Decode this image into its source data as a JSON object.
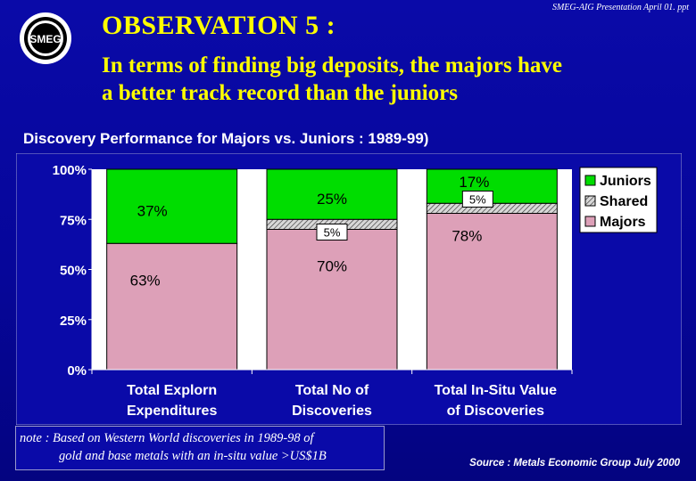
{
  "slide": {
    "logo_text": "SMEG",
    "ref": "SMEG-AIG Presentation April 01. ppt",
    "observation": "OBSERVATION 5 :",
    "headline_line1": "In terms of finding big deposits, the majors have",
    "headline_line2": "a better track record than the juniors",
    "subtitle": "Discovery Performance for Majors vs. Juniors : 1989-99)",
    "note_line1": "note : Based on Western World discoveries in 1989-98 of",
    "note_line2": "gold and base metals with  an in-situ value >US$1B",
    "source": "Source : Metals Economic Group July 2000"
  },
  "colors": {
    "background": "#0a0aa8",
    "title_text": "#ffff00",
    "juniors": "#00dd00",
    "shared": "#bbbbbb",
    "majors": "#dda0b8",
    "plot_bg": "#ffffff"
  },
  "chart_data": {
    "type": "bar",
    "stacked": true,
    "title": "Discovery Performance for Majors vs. Juniors : 1989-99)",
    "categories": [
      [
        "Total Explorn",
        "Expenditures"
      ],
      [
        "Total No of",
        "Discoveries"
      ],
      [
        "Total In-Situ Value",
        "of Discoveries"
      ]
    ],
    "series": [
      {
        "name": "Majors",
        "values": [
          63,
          70,
          78
        ],
        "labels": [
          "63%",
          "70%",
          "78%"
        ]
      },
      {
        "name": "Shared",
        "values": [
          0,
          5,
          5
        ],
        "labels": [
          "",
          "5%",
          "5%"
        ]
      },
      {
        "name": "Juniors",
        "values": [
          37,
          25,
          17
        ],
        "labels": [
          "37%",
          "25%",
          "17%"
        ]
      }
    ],
    "legend_order": [
      "Juniors",
      "Shared",
      "Majors"
    ],
    "ylim": [
      0,
      100
    ],
    "yticks": [
      0,
      25,
      50,
      75,
      100
    ],
    "ytick_labels": [
      "0%",
      "25%",
      "50%",
      "75%",
      "100%"
    ],
    "legend": "right",
    "grid": false
  }
}
